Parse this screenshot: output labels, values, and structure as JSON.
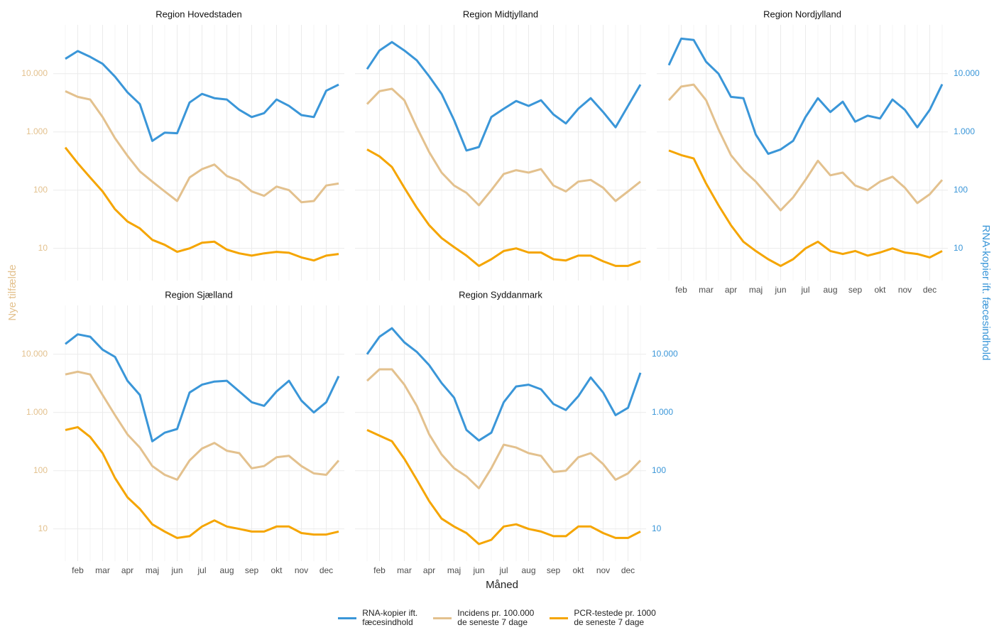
{
  "chart_data": [
    {
      "type": "line",
      "title": "Region Hovedstaden",
      "xlabel": "Måned",
      "ylabel": "Nye tilfælde",
      "y2label": "RNA-kopier ift. fæcesindhold",
      "log_scale": true,
      "grid": true,
      "categories": [
        null,
        "feb",
        null,
        "mar",
        null,
        "apr",
        null,
        "maj",
        null,
        "jun",
        null,
        "jul",
        null,
        "aug",
        null,
        "sep",
        null,
        "okt",
        null,
        "nov",
        null,
        "dec",
        null
      ],
      "ylim": [
        2.8,
        69000
      ],
      "yticks": [
        10,
        100,
        {
          "value": 1000,
          "label": "1.000"
        },
        {
          "value": 10000,
          "label": "10.000"
        }
      ],
      "y2lim": [
        2.8,
        69000
      ],
      "y2ticks": [
        10,
        100,
        {
          "value": 1000,
          "label": "1.000"
        },
        {
          "value": 10000,
          "label": "10.000"
        }
      ],
      "series": [
        {
          "name": "RNA-kopier ift.\nfæcesindhold",
          "color": "#3a96d8",
          "axis": "y2",
          "values": [
            18000,
            24500,
            19500,
            14800,
            8900,
            4800,
            3000,
            700,
            970,
            950,
            3200,
            4500,
            3800,
            3600,
            2400,
            1800,
            2100,
            3600,
            2800,
            1950,
            1800,
            5100,
            6500
          ]
        },
        {
          "name": "Incidens pr. 100.000\nde seneste 7 dage",
          "color": "#e3c18e",
          "values": [
            5000,
            4000,
            3600,
            1800,
            780,
            390,
            210,
            140,
            95,
            65,
            165,
            230,
            275,
            175,
            145,
            95,
            80,
            115,
            100,
            62,
            65,
            120,
            130
          ]
        },
        {
          "name": "PCR-testede pr. 1000\nde seneste 7 dage",
          "color": "#f5a500",
          "values": [
            540,
            290,
            165,
            95,
            47,
            29,
            22,
            14,
            11.5,
            8.7,
            10,
            12.5,
            13,
            9.5,
            8.2,
            7.5,
            8.2,
            8.7,
            8.4,
            7,
            6.2,
            7.5,
            8
          ]
        }
      ]
    },
    {
      "type": "line",
      "title": "Region Midtjylland",
      "log_scale": true,
      "grid": true,
      "categories": [
        null,
        "feb",
        null,
        "mar",
        null,
        "apr",
        null,
        "maj",
        null,
        "jun",
        null,
        "jul",
        null,
        "aug",
        null,
        "sep",
        null,
        "okt",
        null,
        "nov",
        null,
        "dec",
        null
      ],
      "ylim": [
        2.8,
        69000
      ],
      "yticks": [
        10,
        100,
        {
          "value": 1000,
          "label": "1.000"
        },
        {
          "value": 10000,
          "label": "10.000"
        }
      ],
      "y2lim": [
        2.8,
        69000
      ],
      "y2ticks": [
        10,
        100,
        {
          "value": 1000,
          "label": "1.000"
        },
        {
          "value": 10000,
          "label": "10.000"
        }
      ],
      "series": [
        {
          "color": "#3a96d8",
          "axis": "y2",
          "values": [
            12000,
            25000,
            35000,
            25000,
            17000,
            9000,
            4500,
            1600,
            480,
            550,
            1800,
            2500,
            3400,
            2800,
            3500,
            2000,
            1400,
            2500,
            3800,
            2200,
            1200,
            2800,
            6500
          ]
        },
        {
          "color": "#e3c18e",
          "values": [
            3000,
            5000,
            5500,
            3500,
            1200,
            450,
            200,
            120,
            90,
            55,
            100,
            190,
            220,
            200,
            230,
            120,
            95,
            140,
            150,
            110,
            65,
            95,
            140
          ]
        },
        {
          "color": "#f5a500",
          "values": [
            500,
            380,
            250,
            110,
            50,
            25,
            15,
            10.5,
            7.5,
            5,
            6.5,
            9,
            10,
            8.5,
            8.5,
            6.5,
            6.2,
            7.5,
            7.5,
            6,
            5,
            5,
            6
          ]
        }
      ]
    },
    {
      "type": "line",
      "title": "Region Nordjylland",
      "log_scale": true,
      "grid": true,
      "categories": [
        null,
        "feb",
        null,
        "mar",
        null,
        "apr",
        null,
        "maj",
        null,
        "jun",
        null,
        "jul",
        null,
        "aug",
        null,
        "sep",
        null,
        "okt",
        null,
        "nov",
        null,
        "dec",
        null
      ],
      "ylim": [
        2.8,
        69000
      ],
      "yticks": [
        10,
        100,
        {
          "value": 1000,
          "label": "1.000"
        },
        {
          "value": 10000,
          "label": "10.000"
        }
      ],
      "y2lim": [
        2.8,
        69000
      ],
      "y2ticks": [
        10,
        100,
        {
          "value": 1000,
          "label": "1.000"
        },
        {
          "value": 10000,
          "label": "10.000"
        }
      ],
      "series": [
        {
          "color": "#3a96d8",
          "axis": "y2",
          "values": [
            14000,
            40000,
            38000,
            16000,
            10000,
            4000,
            3800,
            900,
            420,
            500,
            700,
            1800,
            3800,
            2200,
            3300,
            1500,
            1900,
            1700,
            3600,
            2400,
            1200,
            2400,
            6600
          ]
        },
        {
          "color": "#e3c18e",
          "values": [
            3500,
            6000,
            6500,
            3500,
            1100,
            400,
            220,
            140,
            80,
            45,
            75,
            150,
            320,
            180,
            200,
            120,
            100,
            140,
            170,
            110,
            60,
            85,
            150
          ]
        },
        {
          "color": "#f5a500",
          "values": [
            480,
            400,
            350,
            130,
            55,
            25,
            13,
            9,
            6.5,
            5,
            6.5,
            10,
            13,
            9,
            8,
            9,
            7.5,
            8.5,
            10,
            8.5,
            8,
            7,
            9
          ]
        }
      ]
    },
    {
      "type": "line",
      "title": "Region Sjælland",
      "log_scale": true,
      "grid": true,
      "categories": [
        null,
        "feb",
        null,
        "mar",
        null,
        "apr",
        null,
        "maj",
        null,
        "jun",
        null,
        "jul",
        null,
        "aug",
        null,
        "sep",
        null,
        "okt",
        null,
        "nov",
        null,
        "dec",
        null
      ],
      "ylim": [
        2.8,
        69000
      ],
      "yticks": [
        10,
        100,
        {
          "value": 1000,
          "label": "1.000"
        },
        {
          "value": 10000,
          "label": "10.000"
        }
      ],
      "y2lim": [
        2.8,
        69000
      ],
      "y2ticks": [
        10,
        100,
        {
          "value": 1000,
          "label": "1.000"
        },
        {
          "value": 10000,
          "label": "10.000"
        }
      ],
      "series": [
        {
          "color": "#3a96d8",
          "axis": "y2",
          "values": [
            15000,
            22000,
            20000,
            12000,
            9000,
            3500,
            2000,
            320,
            450,
            520,
            2200,
            3000,
            3400,
            3500,
            2300,
            1500,
            1300,
            2300,
            3500,
            1600,
            1000,
            1500,
            4200
          ]
        },
        {
          "color": "#e3c18e",
          "values": [
            4500,
            5000,
            4500,
            2000,
            900,
            420,
            250,
            120,
            85,
            70,
            150,
            240,
            300,
            220,
            200,
            110,
            120,
            170,
            180,
            120,
            90,
            85,
            150
          ]
        },
        {
          "color": "#f5a500",
          "values": [
            500,
            560,
            380,
            200,
            75,
            35,
            22,
            12,
            9,
            7,
            7.5,
            11,
            14,
            11,
            10,
            9,
            9,
            11,
            11,
            8.5,
            8,
            8,
            9
          ]
        }
      ]
    },
    {
      "type": "line",
      "title": "Region Syddanmark",
      "log_scale": true,
      "grid": true,
      "categories": [
        null,
        "feb",
        null,
        "mar",
        null,
        "apr",
        null,
        "maj",
        null,
        "jun",
        null,
        "jul",
        null,
        "aug",
        null,
        "sep",
        null,
        "okt",
        null,
        "nov",
        null,
        "dec",
        null
      ],
      "ylim": [
        2.8,
        69000
      ],
      "yticks": [
        10,
        100,
        {
          "value": 1000,
          "label": "1.000"
        },
        {
          "value": 10000,
          "label": "10.000"
        }
      ],
      "y2lim": [
        2.8,
        69000
      ],
      "y2ticks": [
        10,
        100,
        {
          "value": 1000,
          "label": "1.000"
        },
        {
          "value": 10000,
          "label": "10.000"
        }
      ],
      "series": [
        {
          "color": "#3a96d8",
          "axis": "y2",
          "values": [
            10000,
            20000,
            28000,
            16000,
            11000,
            6500,
            3200,
            1800,
            500,
            330,
            450,
            1500,
            2800,
            3000,
            2500,
            1400,
            1100,
            1900,
            4000,
            2200,
            900,
            1200,
            4800
          ]
        },
        {
          "color": "#e3c18e",
          "values": [
            3500,
            5500,
            5500,
            3000,
            1300,
            420,
            190,
            110,
            80,
            50,
            110,
            280,
            250,
            200,
            180,
            95,
            100,
            170,
            200,
            130,
            70,
            90,
            150
          ]
        },
        {
          "color": "#f5a500",
          "values": [
            500,
            400,
            320,
            160,
            70,
            30,
            15,
            11,
            8.5,
            5.5,
            6.5,
            11,
            12,
            10,
            9,
            7.5,
            7.5,
            11,
            11,
            8.5,
            7,
            7,
            9
          ]
        }
      ]
    }
  ]
}
